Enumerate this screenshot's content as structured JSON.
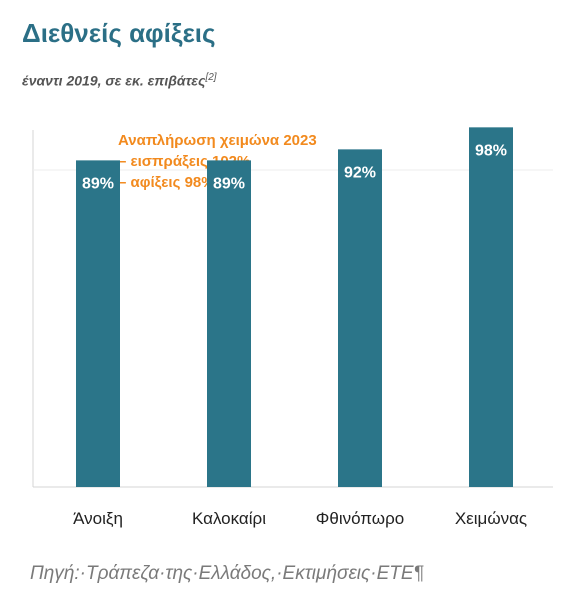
{
  "title": "Διεθνείς αφίξεις",
  "subtitle": "έναντι 2019, σε εκ. επιβάτες",
  "subtitle_ref": "[2]",
  "annotation": {
    "line1": "Αναπλήρωση χειμώνα 2023",
    "line2": "– εισπράξεις 102%",
    "line3": "– αφίξεις 98%"
  },
  "footnote": "Πηγή:·Τράπεζα·της·Ελλάδος,·Εκτιμήσεις·ΕΤΕ¶",
  "colors": {
    "bar": "#2b7589",
    "title": "#2b6f86",
    "annotation": "#f28a1e"
  },
  "chart_data": {
    "type": "bar",
    "categories": [
      "Άνοιξη",
      "Καλοκαίρι",
      "Φθινόπωρο",
      "Χειμώνας"
    ],
    "values": [
      89,
      89,
      92,
      98
    ],
    "data_labels": [
      "89%",
      "89%",
      "92%",
      "98%"
    ],
    "ylim": [
      0,
      100
    ],
    "grid": false,
    "legend": "none"
  }
}
